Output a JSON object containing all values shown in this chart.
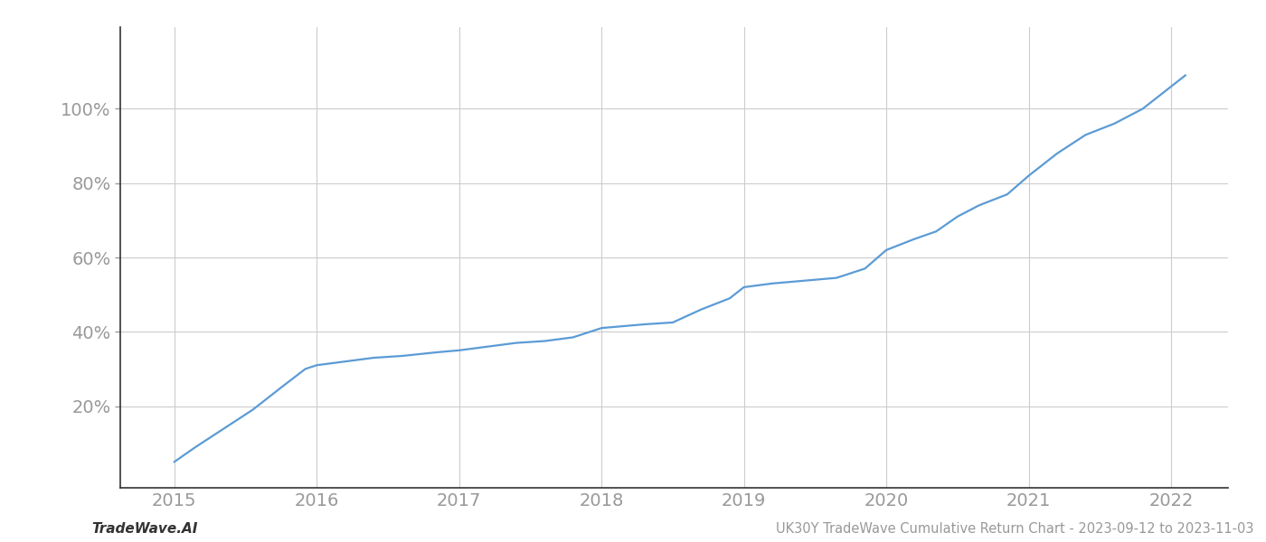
{
  "title": "UK30Y TradeWave Cumulative Return Chart - 2023-09-12 to 2023-11-03",
  "watermark": "TradeWave.AI",
  "line_color": "#5b9bd5",
  "background_color": "#ffffff",
  "grid_color": "#cccccc",
  "x_values": [
    2015.0,
    2015.15,
    2015.35,
    2015.55,
    2015.75,
    2015.92,
    2016.0,
    2016.1,
    2016.2,
    2016.4,
    2016.6,
    2016.85,
    2017.0,
    2017.2,
    2017.4,
    2017.6,
    2017.8,
    2018.0,
    2018.15,
    2018.3,
    2018.5,
    2018.7,
    2018.9,
    2019.0,
    2019.2,
    2019.35,
    2019.5,
    2019.65,
    2019.85,
    2020.0,
    2020.2,
    2020.35,
    2020.5,
    2020.65,
    2020.85,
    2021.0,
    2021.2,
    2021.4,
    2021.6,
    2021.8,
    2022.0,
    2022.1
  ],
  "y_values": [
    5,
    9,
    14,
    19,
    25,
    30,
    31,
    31.5,
    32,
    33,
    33.5,
    34.5,
    35,
    36,
    37,
    37.5,
    38.5,
    41,
    41.5,
    42,
    42.5,
    46,
    49,
    52,
    53,
    53.5,
    54,
    54.5,
    57,
    62,
    65,
    67,
    71,
    74,
    77,
    82,
    88,
    93,
    96,
    100,
    106,
    109
  ],
  "xlim": [
    2014.62,
    2022.4
  ],
  "ylim": [
    -2,
    122
  ],
  "yticks": [
    20,
    40,
    60,
    80,
    100
  ],
  "xticks": [
    2015,
    2016,
    2017,
    2018,
    2019,
    2020,
    2021,
    2022
  ],
  "line_width": 1.6,
  "title_fontsize": 10.5,
  "watermark_fontsize": 11,
  "tick_fontsize": 14,
  "tick_color": "#999999",
  "spine_color": "#333333",
  "left_spine_color": "#333333"
}
